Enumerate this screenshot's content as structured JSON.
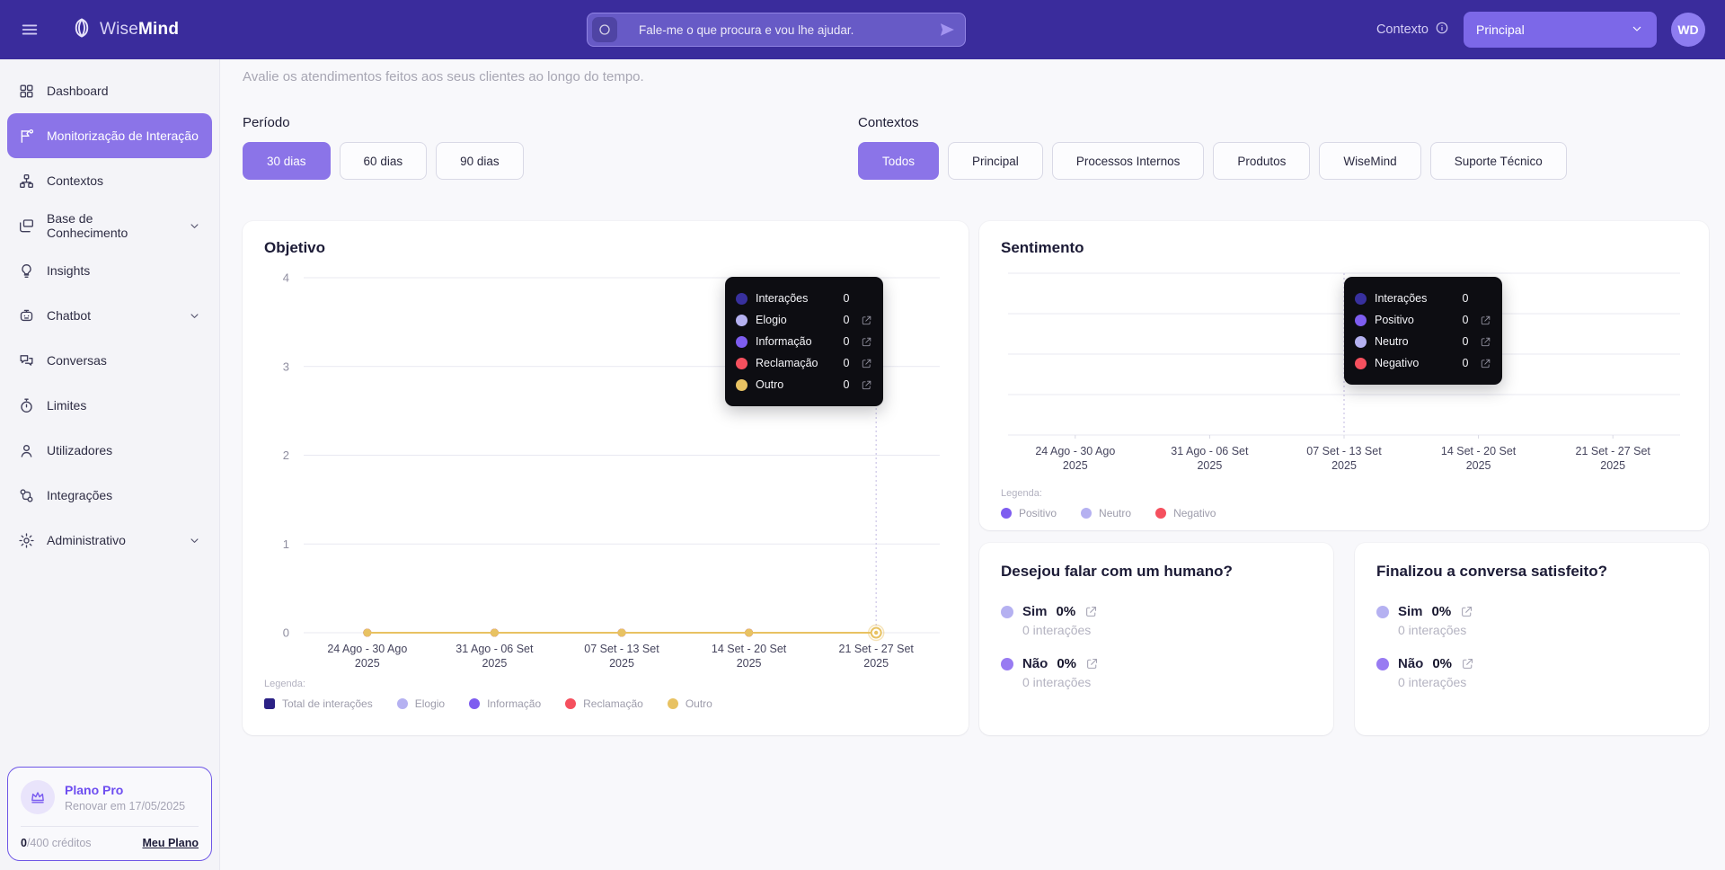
{
  "colors": {
    "topbar_bg": "#3a2c9c",
    "accent": "#8b74e8",
    "series_interacoes": "#38309e",
    "series_navy": "#2b2185",
    "series_lavender": "#b5b1f1",
    "series_purple": "#7e5df0",
    "series_red": "#f5505e",
    "series_yellow": "#e8c262",
    "tooltip_bg": "#0d0d12"
  },
  "topbar": {
    "logo_wise": "Wise",
    "logo_mind": "Mind",
    "search_placeholder": "Fale-me o que procura e vou lhe ajudar.",
    "context_label": "Contexto",
    "context_selected": "Principal",
    "avatar_initials": "WD"
  },
  "sidebar": {
    "items": [
      {
        "label": "Dashboard",
        "icon": "dashboard-icon",
        "active": false,
        "chevron": false
      },
      {
        "label": "Monitorização de Interação",
        "icon": "interaction-monitor-icon",
        "active": true,
        "chevron": false
      },
      {
        "label": "Contextos",
        "icon": "contexts-icon",
        "active": false,
        "chevron": false
      },
      {
        "label": "Base de Conhecimento",
        "icon": "knowledge-base-icon",
        "active": false,
        "chevron": true
      },
      {
        "label": "Insights",
        "icon": "insights-icon",
        "active": false,
        "chevron": false
      },
      {
        "label": "Chatbot",
        "icon": "chatbot-icon",
        "active": false,
        "chevron": true
      },
      {
        "label": "Conversas",
        "icon": "conversations-icon",
        "active": false,
        "chevron": false
      },
      {
        "label": "Limites",
        "icon": "limits-icon",
        "active": false,
        "chevron": false
      },
      {
        "label": "Utilizadores",
        "icon": "users-icon",
        "active": false,
        "chevron": false
      },
      {
        "label": "Integrações",
        "icon": "integrations-icon",
        "active": false,
        "chevron": false
      },
      {
        "label": "Administrativo",
        "icon": "admin-icon",
        "active": false,
        "chevron": true
      }
    ],
    "plan": {
      "name": "Plano Pro",
      "renewal": "Renovar em 17/05/2025",
      "credits_used": "0",
      "credits_rest": "/400 créditos",
      "link_label": "Meu Plano"
    }
  },
  "page": {
    "title": "Monitorização de Interação",
    "subtitle": "Avalie os atendimentos feitos aos seus clientes ao longo do tempo."
  },
  "filters": {
    "period_label": "Período",
    "period_options": [
      {
        "label": "30 dias",
        "active": true
      },
      {
        "label": "60 dias",
        "active": false
      },
      {
        "label": "90 dias",
        "active": false
      }
    ],
    "contexts_label": "Contextos",
    "context_options": [
      {
        "label": "Todos",
        "active": true
      },
      {
        "label": "Principal",
        "active": false
      },
      {
        "label": "Processos Internos",
        "active": false
      },
      {
        "label": "Produtos",
        "active": false
      },
      {
        "label": "WiseMind",
        "active": false
      },
      {
        "label": "Suporte Técnico",
        "active": false
      }
    ]
  },
  "chart_data": [
    {
      "id": "objetivo",
      "type": "line",
      "title": "Objetivo",
      "categories": [
        "24 Ago - 30 Ago",
        "31 Ago - 06 Set",
        "07 Set - 13 Set",
        "14 Set - 20 Set",
        "21 Set - 27 Set"
      ],
      "category_year": "2025",
      "series": [
        {
          "name": "Total de interações",
          "color": "#2b2185",
          "marker": "square",
          "values": [
            0,
            0,
            0,
            0,
            0
          ]
        },
        {
          "name": "Elogio",
          "color": "#b5b1f1",
          "marker": "circle",
          "values": [
            0,
            0,
            0,
            0,
            0
          ]
        },
        {
          "name": "Informação",
          "color": "#7e5df0",
          "marker": "circle",
          "values": [
            0,
            0,
            0,
            0,
            0
          ]
        },
        {
          "name": "Reclamação",
          "color": "#f5505e",
          "marker": "circle",
          "values": [
            0,
            0,
            0,
            0,
            0
          ]
        },
        {
          "name": "Outro",
          "color": "#e8c262",
          "marker": "circle",
          "values": [
            0,
            0,
            0,
            0,
            0
          ]
        }
      ],
      "ylim": [
        0,
        4
      ],
      "yticks": [
        0,
        1,
        2,
        3,
        4
      ],
      "show_y_labels": true,
      "grid": true,
      "line_visible": true,
      "cursor_index": 4,
      "legend_label": "Legenda:",
      "legend_position": "bottom",
      "tooltip": {
        "rows": [
          {
            "label": "Interações",
            "value": "0",
            "color": "#38309e",
            "link": false
          },
          {
            "label": "Elogio",
            "value": "0",
            "color": "#b5b1f1",
            "link": true
          },
          {
            "label": "Informação",
            "value": "0",
            "color": "#7e5df0",
            "link": true
          },
          {
            "label": "Reclamação",
            "value": "0",
            "color": "#f5505e",
            "link": true
          },
          {
            "label": "Outro",
            "value": "0",
            "color": "#e8c262",
            "link": true
          }
        ]
      }
    },
    {
      "id": "sentimento",
      "type": "line",
      "title": "Sentimento",
      "categories": [
        "24 Ago - 30 Ago",
        "31 Ago - 06 Set",
        "07 Set - 13 Set",
        "14 Set - 20 Set",
        "21 Set - 27 Set"
      ],
      "category_year": "2025",
      "series": [
        {
          "name": "Positivo",
          "color": "#7e5df0",
          "marker": "circle",
          "values": [
            0,
            0,
            0,
            0,
            0
          ]
        },
        {
          "name": "Neutro",
          "color": "#b5b1f1",
          "marker": "circle",
          "values": [
            0,
            0,
            0,
            0,
            0
          ]
        },
        {
          "name": "Negativo",
          "color": "#f5505e",
          "marker": "circle",
          "values": [
            0,
            0,
            0,
            0,
            0
          ]
        }
      ],
      "ylim": [
        0,
        4
      ],
      "yticks": [
        0,
        1,
        2,
        3,
        4
      ],
      "show_y_labels": false,
      "grid": true,
      "line_visible": false,
      "cursor_index": 2,
      "legend_label": "Legenda:",
      "legend_position": "bottom",
      "tooltip": {
        "rows": [
          {
            "label": "Interações",
            "value": "0",
            "color": "#38309e",
            "link": false
          },
          {
            "label": "Positivo",
            "value": "0",
            "color": "#7e5df0",
            "link": true
          },
          {
            "label": "Neutro",
            "value": "0",
            "color": "#b5b1f1",
            "link": true
          },
          {
            "label": "Negativo",
            "value": "0",
            "color": "#f5505e",
            "link": true
          }
        ]
      }
    }
  ],
  "stat_cards": [
    {
      "title": "Desejou falar com um humano?",
      "rows": [
        {
          "label": "Sim",
          "value": "0%",
          "sub": "0 interações",
          "color": "#b5b1f1"
        },
        {
          "label": "Não",
          "value": "0%",
          "sub": "0 interações",
          "color": "#987bf2"
        }
      ]
    },
    {
      "title": "Finalizou a conversa satisfeito?",
      "rows": [
        {
          "label": "Sim",
          "value": "0%",
          "sub": "0 interações",
          "color": "#b5b1f1"
        },
        {
          "label": "Não",
          "value": "0%",
          "sub": "0 interações",
          "color": "#987bf2"
        }
      ]
    }
  ]
}
